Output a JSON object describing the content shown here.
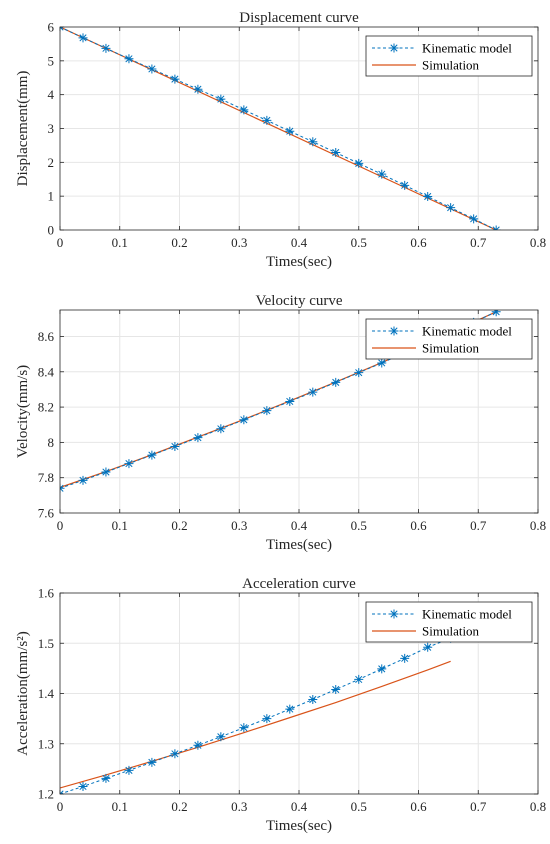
{
  "colors": {
    "kinematic": "#0072BD",
    "simulation": "#D95319"
  },
  "chart_data": [
    {
      "type": "line",
      "title": "Displacement curve",
      "xlabel": "Times(sec)",
      "ylabel": "Displacement(mm)",
      "xlim": [
        0,
        0.8
      ],
      "ylim": [
        0,
        6
      ],
      "xticks": [
        "0",
        "0.1",
        "0.2",
        "0.3",
        "0.4",
        "0.5",
        "0.6",
        "0.7",
        "0.8"
      ],
      "yticks": [
        "0",
        "1",
        "2",
        "3",
        "4",
        "5",
        "6"
      ],
      "grid": true,
      "legend_position": "top-right",
      "series": [
        {
          "name": "Kinematic model",
          "style": "dashed-star",
          "x": [
            0,
            0.0385,
            0.0769,
            0.1154,
            0.1538,
            0.1923,
            0.2308,
            0.2692,
            0.3077,
            0.3462,
            0.3846,
            0.4231,
            0.4615,
            0.5,
            0.5385,
            0.5769,
            0.6154,
            0.6538,
            0.6923,
            0.73
          ],
          "y": [
            6.0,
            5.68,
            5.37,
            5.06,
            4.76,
            4.46,
            4.16,
            3.87,
            3.55,
            3.24,
            2.92,
            2.61,
            2.29,
            1.97,
            1.65,
            1.32,
            0.99,
            0.66,
            0.33,
            0.0
          ]
        },
        {
          "name": "Simulation",
          "style": "solid",
          "x": [
            0,
            0.73
          ],
          "y": [
            6.0,
            0.0
          ]
        }
      ]
    },
    {
      "type": "line",
      "title": "Velocity curve",
      "xlabel": "Times(sec)",
      "ylabel": "Velocity(mm/s)",
      "xlim": [
        0,
        0.8
      ],
      "ylim": [
        7.6,
        8.75
      ],
      "xticks": [
        "0",
        "0.1",
        "0.2",
        "0.3",
        "0.4",
        "0.5",
        "0.6",
        "0.7",
        "0.8"
      ],
      "yticks": [
        "7.6",
        "7.8",
        "8",
        "8.2",
        "8.4",
        "8.6"
      ],
      "grid": true,
      "legend_position": "top-right",
      "series": [
        {
          "name": "Kinematic model",
          "style": "dashed-star",
          "x": [
            0,
            0.0385,
            0.0769,
            0.1154,
            0.1538,
            0.1923,
            0.2308,
            0.2692,
            0.3077,
            0.3462,
            0.3846,
            0.4231,
            0.4615,
            0.5,
            0.5385,
            0.5769,
            0.6154,
            0.6538,
            0.6923,
            0.73
          ],
          "y": [
            7.74,
            7.785,
            7.832,
            7.88,
            7.928,
            7.977,
            8.027,
            8.077,
            8.128,
            8.18,
            8.232,
            8.285,
            8.34,
            8.395,
            8.45,
            8.507,
            8.563,
            8.62,
            8.68,
            8.74
          ]
        },
        {
          "name": "Simulation",
          "style": "solid",
          "x": [
            0,
            0.0769,
            0.1538,
            0.2308,
            0.3077,
            0.3846,
            0.4615,
            0.5385,
            0.6154,
            0.6923,
            0.73
          ],
          "y": [
            7.745,
            7.835,
            7.93,
            8.03,
            8.13,
            8.235,
            8.342,
            8.452,
            8.565,
            8.682,
            8.74
          ]
        }
      ]
    },
    {
      "type": "line",
      "title": "Acceleration curve",
      "xlabel": "Times(sec)",
      "ylabel": "Acceleration(mm/s²)",
      "xlim": [
        0,
        0.8
      ],
      "ylim": [
        1.2,
        1.6
      ],
      "xticks": [
        "0",
        "0.1",
        "0.2",
        "0.3",
        "0.4",
        "0.5",
        "0.6",
        "0.7",
        "0.8"
      ],
      "yticks": [
        "1.2",
        "1.3",
        "1.4",
        "1.5",
        "1.6"
      ],
      "grid": true,
      "legend_position": "top-right",
      "series": [
        {
          "name": "Kinematic model",
          "style": "dashed-star",
          "x": [
            0,
            0.0385,
            0.0769,
            0.1154,
            0.1538,
            0.1923,
            0.2308,
            0.2692,
            0.3077,
            0.3462,
            0.3846,
            0.4231,
            0.4615,
            0.5,
            0.5385,
            0.5769,
            0.6154,
            0.6538
          ],
          "y": [
            1.2,
            1.215,
            1.231,
            1.247,
            1.263,
            1.28,
            1.297,
            1.314,
            1.332,
            1.35,
            1.369,
            1.388,
            1.408,
            1.428,
            1.449,
            1.47,
            1.492,
            1.51
          ]
        },
        {
          "name": "Simulation",
          "style": "solid",
          "x": [
            0,
            0.0769,
            0.1538,
            0.2308,
            0.3077,
            0.3846,
            0.4615,
            0.5385,
            0.6154,
            0.6538
          ],
          "y": [
            1.212,
            1.238,
            1.265,
            1.293,
            1.322,
            1.352,
            1.382,
            1.414,
            1.447,
            1.464
          ]
        }
      ]
    }
  ]
}
